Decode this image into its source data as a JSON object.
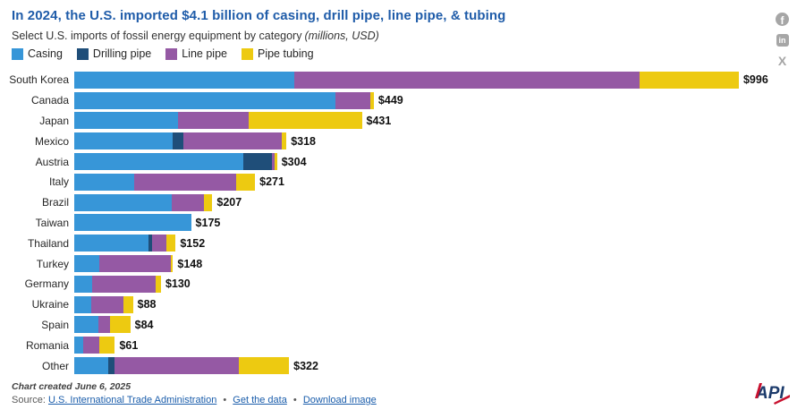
{
  "header": {
    "title": "In 2024, the U.S. imported $4.1 billion of casing, drill pipe, line pipe, & tubing",
    "subtitle": "Select U.S. imports of fossil energy equipment by category",
    "subtitle_note": "(millions, USD)"
  },
  "social_icons": {
    "facebook_glyph": "f",
    "linkedin_glyph": "in",
    "x_glyph": "X"
  },
  "colors": {
    "title_blue": "#1f5ca9",
    "link_blue": "#1a5dab",
    "casing": "#3796d8",
    "drilling_pipe": "#1f4e79",
    "line_pipe": "#9559a4",
    "pipe_tubing": "#edca11",
    "icon_gray": "#a6a6a6",
    "logo_navy": "#1b3a6b",
    "logo_red": "#c8102e"
  },
  "chart_data": {
    "type": "bar",
    "orientation": "horizontal",
    "stacked": true,
    "units": "millions, USD",
    "xmax": 996,
    "grid": false,
    "legend_position": "top",
    "categories": [
      "South Korea",
      "Canada",
      "Japan",
      "Mexico",
      "Austria",
      "Italy",
      "Brazil",
      "Taiwan",
      "Thailand",
      "Turkey",
      "Germany",
      "Ukraine",
      "Spain",
      "Romania",
      "Other"
    ],
    "series": [
      {
        "name": "Casing",
        "color": "#3796d8",
        "values": [
          330,
          391,
          156,
          148,
          253,
          90,
          146,
          175,
          111,
          38,
          27,
          25,
          36,
          14,
          51
        ]
      },
      {
        "name": "Drilling pipe",
        "color": "#1f4e79",
        "values": [
          0,
          0,
          0,
          16,
          43,
          0,
          0,
          0,
          6,
          0,
          0,
          0,
          0,
          0,
          9
        ]
      },
      {
        "name": "Line pipe",
        "color": "#9559a4",
        "values": [
          517,
          53,
          105,
          147,
          4,
          152,
          49,
          0,
          21,
          107,
          95,
          49,
          17,
          24,
          187
        ]
      },
      {
        "name": "Pipe tubing",
        "color": "#edca11",
        "values": [
          149,
          5,
          170,
          7,
          4,
          29,
          12,
          0,
          14,
          3,
          8,
          14,
          31,
          23,
          75
        ]
      }
    ],
    "totals": [
      996,
      449,
      431,
      318,
      304,
      271,
      207,
      175,
      152,
      148,
      130,
      88,
      84,
      61,
      322
    ],
    "totals_labels": [
      "$996",
      "$449",
      "$431",
      "$318",
      "$304",
      "$271",
      "$207",
      "$175",
      "$152",
      "$148",
      "$130",
      "$88",
      "$84",
      "$61",
      "$322"
    ]
  },
  "footer": {
    "created": "Chart created June 6, 2025",
    "source_label": "Source:",
    "separator": "•",
    "links": {
      "source_link": "U.S. International Trade Administration",
      "get_data": "Get the data",
      "download": "Download image"
    }
  },
  "logo": {
    "text": "API"
  }
}
